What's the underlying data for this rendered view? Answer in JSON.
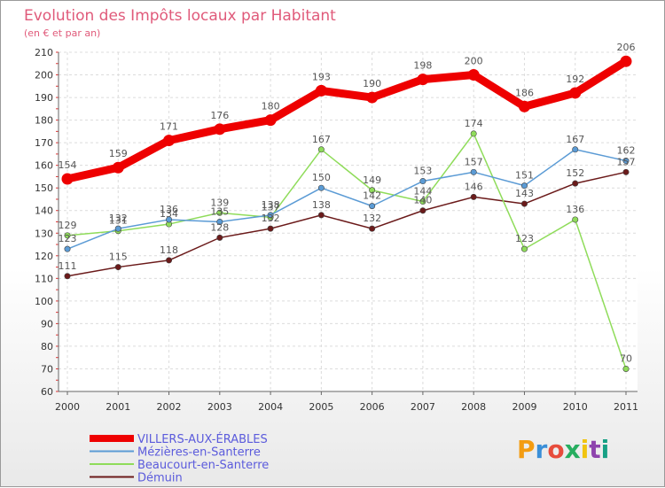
{
  "chart_data": {
    "type": "line",
    "title": "Evolution des Impôts locaux par Habitant",
    "subtitle": "(en € et par an)",
    "xlabel": "",
    "ylabel": "",
    "categories": [
      "2000",
      "2001",
      "2002",
      "2003",
      "2004",
      "2005",
      "2006",
      "2007",
      "2008",
      "2009",
      "2010",
      "2011"
    ],
    "ylim": [
      60,
      210
    ],
    "yticks": [
      60,
      70,
      80,
      90,
      100,
      110,
      120,
      130,
      140,
      150,
      160,
      170,
      180,
      190,
      200,
      210
    ],
    "grid": true,
    "legend_position": "bottom-left",
    "series": [
      {
        "name": "VILLERS-AUX-ÉRABLES",
        "color": "#ee0000",
        "values": [
          154,
          159,
          171,
          176,
          180,
          193,
          190,
          198,
          200,
          186,
          192,
          206
        ]
      },
      {
        "name": "Mézières-en-Santerre",
        "color": "#5b9bd5",
        "values": [
          123,
          132,
          136,
          135,
          138,
          150,
          142,
          153,
          157,
          151,
          167,
          162
        ]
      },
      {
        "name": "Beaucourt-en-Santerre",
        "color": "#8fdc5a",
        "values": [
          129,
          131,
          134,
          139,
          137,
          167,
          149,
          144,
          174,
          123,
          136,
          70
        ]
      },
      {
        "name": "Démuin",
        "color": "#6b1a1a",
        "values": [
          111,
          115,
          118,
          128,
          132,
          138,
          132,
          140,
          146,
          143,
          152,
          157
        ]
      }
    ]
  },
  "branding": {
    "logo_text": "Proxiti",
    "logo_colors": [
      "#f39c12",
      "#3a8fd8",
      "#e74c3c",
      "#27ae60",
      "#f1c40f",
      "#8e44ad",
      "#16a085"
    ]
  }
}
